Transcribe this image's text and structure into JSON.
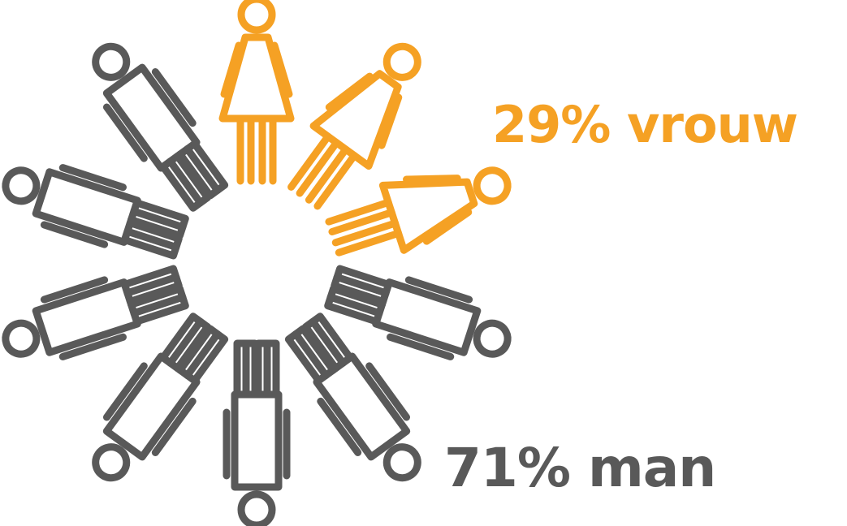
{
  "chart_data": {
    "type": "pictograph",
    "total_icons": 10,
    "series": [
      {
        "name": "vrouw",
        "percent": 29,
        "icon": "woman-icon",
        "color": "#f5a124",
        "label": "29% vrouw"
      },
      {
        "name": "man",
        "percent": 71,
        "icon": "man-icon",
        "color": "#595959",
        "label": "71% man"
      }
    ]
  }
}
